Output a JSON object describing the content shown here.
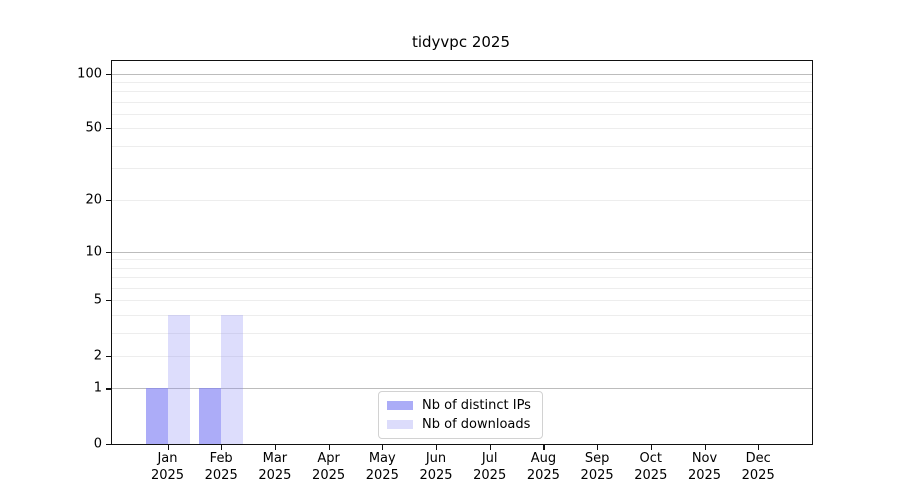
{
  "title": "tidyvpc 2025",
  "legend": {
    "items": [
      {
        "label": "Nb of distinct IPs",
        "swatch_color": "#abacf7"
      },
      {
        "label": "Nb of downloads",
        "swatch_color": "#dcdcfb"
      }
    ]
  },
  "chart_data": {
    "type": "bar",
    "title": "tidyvpc 2025",
    "xlabel": "",
    "ylabel": "",
    "categories": [
      {
        "month": "Jan",
        "year": "2025"
      },
      {
        "month": "Feb",
        "year": "2025"
      },
      {
        "month": "Mar",
        "year": "2025"
      },
      {
        "month": "Apr",
        "year": "2025"
      },
      {
        "month": "May",
        "year": "2025"
      },
      {
        "month": "Jun",
        "year": "2025"
      },
      {
        "month": "Jul",
        "year": "2025"
      },
      {
        "month": "Aug",
        "year": "2025"
      },
      {
        "month": "Sep",
        "year": "2025"
      },
      {
        "month": "Oct",
        "year": "2025"
      },
      {
        "month": "Nov",
        "year": "2025"
      },
      {
        "month": "Dec",
        "year": "2025"
      }
    ],
    "series": [
      {
        "name": "Nb of distinct IPs",
        "color": "rgba(128,128,245,0.65)",
        "values": [
          1,
          1,
          0,
          0,
          0,
          0,
          0,
          0,
          0,
          0,
          0,
          0
        ]
      },
      {
        "name": "Nb of downloads",
        "color": "rgba(128,128,245,0.27)",
        "values": [
          4,
          4,
          0,
          0,
          0,
          0,
          0,
          0,
          0,
          0,
          0,
          0
        ]
      }
    ],
    "yscale": "log1p",
    "ylim": [
      0,
      117
    ],
    "yticks": [
      0,
      1,
      2,
      5,
      10,
      20,
      50,
      100
    ],
    "gridlines": {
      "major": [
        1,
        10,
        100
      ],
      "minor": [
        2,
        3,
        4,
        5,
        6,
        7,
        8,
        9,
        20,
        30,
        40,
        50,
        60,
        70,
        80,
        90
      ]
    },
    "grid": "both",
    "legend_position": "lower center"
  }
}
